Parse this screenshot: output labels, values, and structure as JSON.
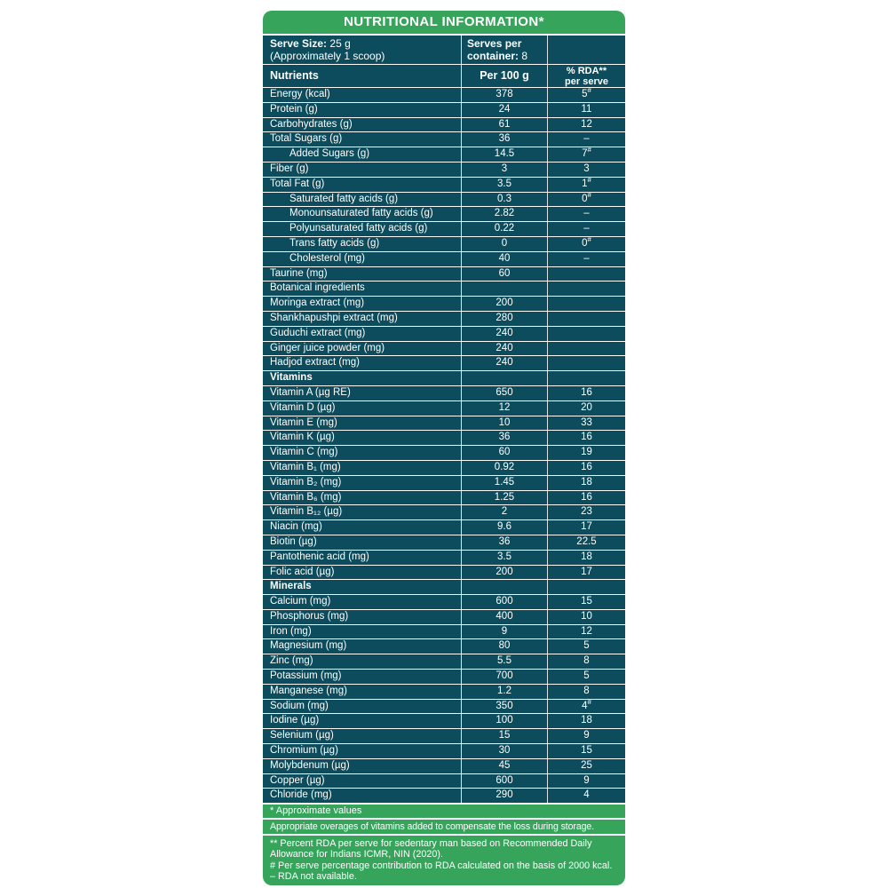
{
  "title": "NUTRITIONAL INFORMATION*",
  "colors": {
    "green": "#37a45c",
    "teal": "#0d4c5c",
    "text": "#ffffff"
  },
  "serve_info": {
    "serve_size_label": "Serve Size:",
    "serve_size_value": "25 g",
    "serve_size_note": "(Approximately 1 scoop)",
    "serves_per_container_label": "Serves per container:",
    "serves_per_container_value": "8"
  },
  "columns": {
    "nutrients": "Nutrients",
    "per_100g": "Per 100 g",
    "rda_line1": "% RDA**",
    "rda_line2": "per serve"
  },
  "rows": [
    {
      "name": "Energy (kcal)",
      "per100": "378",
      "rda": "5#"
    },
    {
      "name": "Protein (g)",
      "per100": "24",
      "rda": "11"
    },
    {
      "name": "Carbohydrates (g)",
      "per100": "61",
      "rda": "12"
    },
    {
      "name": "Total Sugars (g)",
      "per100": "36",
      "rda": "–"
    },
    {
      "name": "Added Sugars (g)",
      "per100": "14.5",
      "rda": "7#",
      "indent": true
    },
    {
      "name": "Fiber (g)",
      "per100": "3",
      "rda": "3"
    },
    {
      "name": "Total Fat (g)",
      "per100": "3.5",
      "rda": "1#"
    },
    {
      "name": "Saturated fatty acids (g)",
      "per100": "0.3",
      "rda": "0#",
      "indent": true
    },
    {
      "name": "Monounsaturated fatty acids (g)",
      "per100": "2.82",
      "rda": "–",
      "indent": true
    },
    {
      "name": "Polyunsaturated fatty acids (g)",
      "per100": "0.22",
      "rda": "–",
      "indent": true
    },
    {
      "name": "Trans fatty acids (g)",
      "per100": "0",
      "rda": "0#",
      "indent": true
    },
    {
      "name": "Cholesterol (mg)",
      "per100": "40",
      "rda": "–",
      "indent": true
    },
    {
      "name": "Taurine (mg)",
      "per100": "60",
      "rda": ""
    },
    {
      "name": "Botanical ingredients",
      "per100": "",
      "rda": ""
    },
    {
      "name": "Moringa extract (mg)",
      "per100": "200",
      "rda": ""
    },
    {
      "name": "Shankhapushpi extract (mg)",
      "per100": "280",
      "rda": ""
    },
    {
      "name": "Guduchi extract (mg)",
      "per100": "240",
      "rda": ""
    },
    {
      "name": "Ginger juice powder (mg)",
      "per100": "240",
      "rda": ""
    },
    {
      "name": "Hadjod extract (mg)",
      "per100": "240",
      "rda": ""
    },
    {
      "name": "Vitamins",
      "per100": "",
      "rda": "",
      "section": true
    },
    {
      "name": "Vitamin A (µg RE)",
      "per100": "650",
      "rda": "16"
    },
    {
      "name": "Vitamin D (µg)",
      "per100": "12",
      "rda": "20"
    },
    {
      "name": "Vitamin E (mg)",
      "per100": "10",
      "rda": "33"
    },
    {
      "name": "Vitamin K (µg)",
      "per100": "36",
      "rda": "16"
    },
    {
      "name": "Vitamin C (mg)",
      "per100": "60",
      "rda": "19"
    },
    {
      "name": "Vitamin B₁ (mg)",
      "per100": "0.92",
      "rda": "16"
    },
    {
      "name": "Vitamin B₂ (mg)",
      "per100": "1.45",
      "rda": "18"
    },
    {
      "name": "Vitamin B₆ (mg)",
      "per100": "1.25",
      "rda": "16"
    },
    {
      "name": "Vitamin B₁₂ (µg)",
      "per100": "2",
      "rda": "23"
    },
    {
      "name": "Niacin (mg)",
      "per100": "9.6",
      "rda": "17"
    },
    {
      "name": "Biotin (µg)",
      "per100": "36",
      "rda": "22.5"
    },
    {
      "name": "Pantothenic acid (mg)",
      "per100": "3.5",
      "rda": "18"
    },
    {
      "name": "Folic acid (µg)",
      "per100": "200",
      "rda": "17"
    },
    {
      "name": "Minerals",
      "per100": "",
      "rda": "",
      "section": true
    },
    {
      "name": "Calcium (mg)",
      "per100": "600",
      "rda": "15"
    },
    {
      "name": "Phosphorus (mg)",
      "per100": "400",
      "rda": "10"
    },
    {
      "name": "Iron (mg)",
      "per100": "9",
      "rda": "12"
    },
    {
      "name": "Magnesium (mg)",
      "per100": "80",
      "rda": "5"
    },
    {
      "name": "Zinc (mg)",
      "per100": "5.5",
      "rda": "8"
    },
    {
      "name": "Potassium (mg)",
      "per100": "700",
      "rda": "5"
    },
    {
      "name": "Manganese (mg)",
      "per100": "1.2",
      "rda": "8"
    },
    {
      "name": "Sodium (mg)",
      "per100": "350",
      "rda": "4#"
    },
    {
      "name": "Iodine (µg)",
      "per100": "100",
      "rda": "18"
    },
    {
      "name": "Selenium (µg)",
      "per100": "15",
      "rda": "9"
    },
    {
      "name": "Chromium (µg)",
      "per100": "30",
      "rda": "15"
    },
    {
      "name": "Molybdenum (µg)",
      "per100": "45",
      "rda": "25"
    },
    {
      "name": "Copper (µg)",
      "per100": "600",
      "rda": "9"
    },
    {
      "name": "Chloride (mg)",
      "per100": "290",
      "rda": "4"
    }
  ],
  "footnotes": {
    "approx": "* Approximate values",
    "overages": "Appropriate overages of vitamins added to compensate the loss during storage.",
    "notes": [
      "** Percent RDA per serve for sedentary man based on Recommended Daily Allowance for Indians ICMR, NIN (2020).",
      "# Per serve percentage contribution to RDA calculated on the basis of 2000 kcal.",
      "– RDA not available."
    ]
  }
}
